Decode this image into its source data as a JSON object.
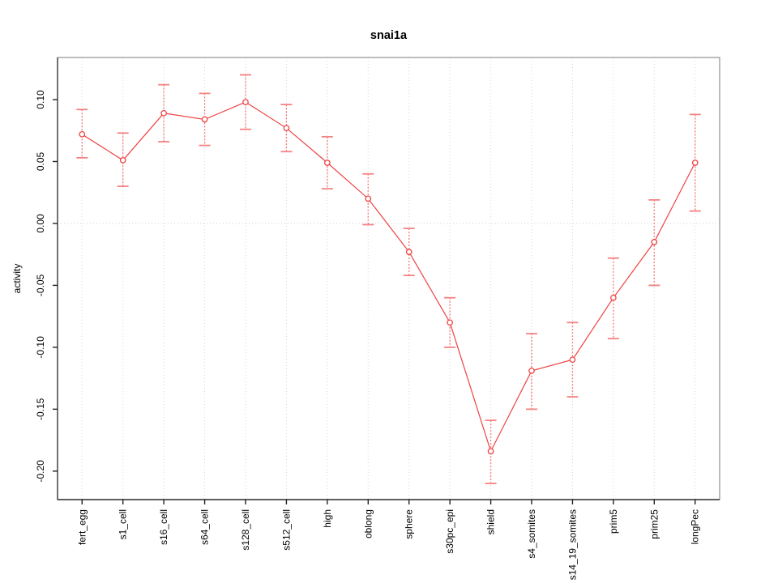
{
  "chart_data": {
    "type": "line",
    "title": "snai1a",
    "xlabel": "",
    "ylabel": "activity",
    "legend": "none",
    "grid": {
      "vertical_category_lines": true,
      "horizontal_zero_line": true
    },
    "categories": [
      "fert_egg",
      "s1_cell",
      "s16_cell",
      "s64_cell",
      "s128_cell",
      "s512_cell",
      "high",
      "oblong",
      "sphere",
      "s30pc_epi",
      "shield",
      "s4_somites",
      "s14_19_somites",
      "prim5",
      "prim25",
      "longPec"
    ],
    "series": [
      {
        "name": "activity",
        "marker": "open-circle",
        "values": [
          0.072,
          0.051,
          0.089,
          0.084,
          0.098,
          0.077,
          0.049,
          0.02,
          -0.023,
          -0.08,
          -0.184,
          -0.119,
          -0.11,
          -0.06,
          -0.015,
          0.049
        ],
        "lower": [
          0.053,
          0.03,
          0.066,
          0.063,
          0.076,
          0.058,
          0.028,
          -0.001,
          -0.042,
          -0.1,
          -0.21,
          -0.15,
          -0.14,
          -0.093,
          -0.05,
          0.01
        ],
        "upper": [
          0.092,
          0.073,
          0.112,
          0.105,
          0.12,
          0.096,
          0.07,
          0.04,
          -0.004,
          -0.06,
          -0.159,
          -0.089,
          -0.08,
          -0.028,
          0.019,
          0.088
        ]
      }
    ],
    "yticks": [
      0.1,
      0.05,
      0.0,
      -0.05,
      -0.1,
      -0.15,
      -0.2
    ],
    "ytick_labels": [
      "0.10",
      "0.05",
      "0.00",
      "-0.05",
      "-0.10",
      "-0.15",
      "-0.20"
    ],
    "ylim": [
      -0.223,
      0.134
    ],
    "colors": {
      "line": "#ee4343",
      "marker": "#ee4343",
      "marker_fill": "#ffffff",
      "errorbar": "#f58282",
      "gridline": "#d6d6d6",
      "zero_line": "#cccccc",
      "box": "#999999",
      "axis_left": "#555555",
      "axis_bottom": "#333333",
      "tick": "#222222",
      "text": "#000000"
    }
  }
}
